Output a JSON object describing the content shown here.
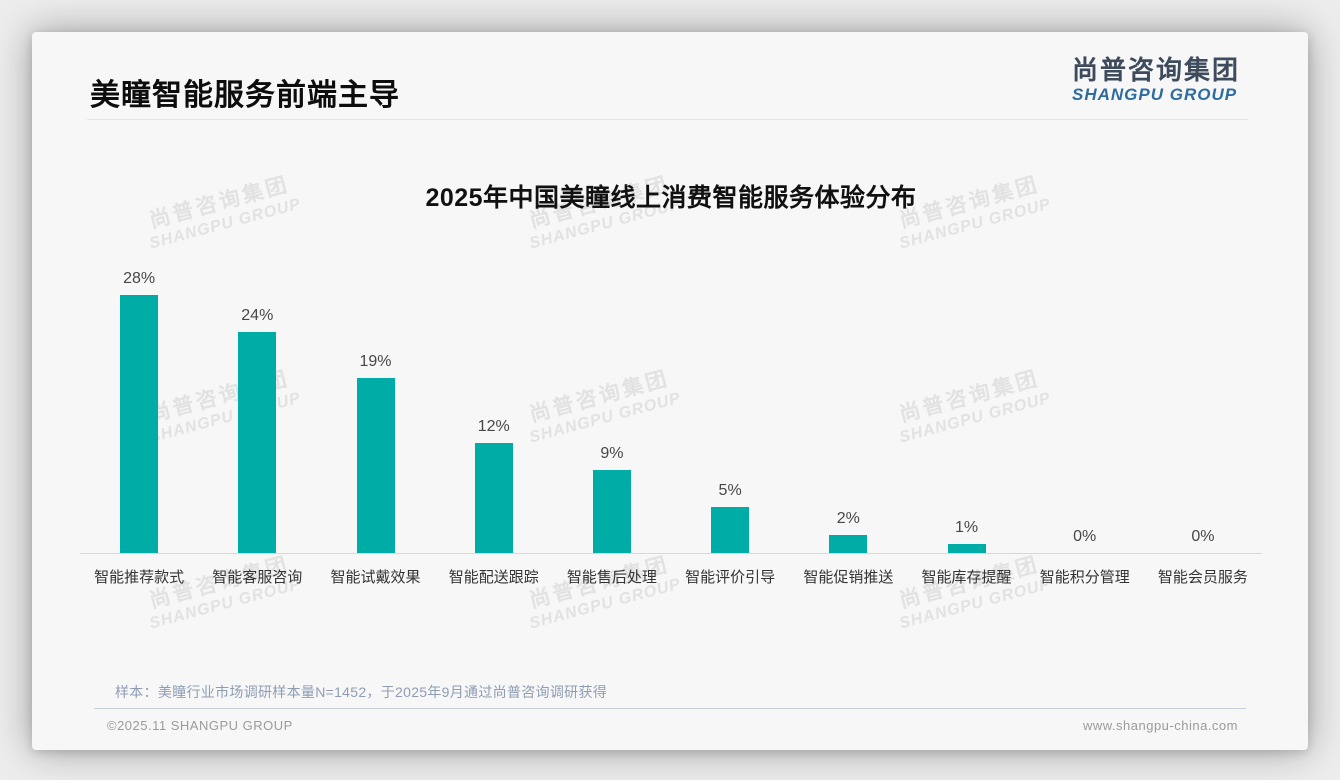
{
  "header": {
    "title": "美瞳智能服务前端主导",
    "logo": {
      "chinese": "尚普咨询集团",
      "english": "SHANGPU GROUP",
      "chinese_color": "#3d4b5c",
      "english_color": "#2e6ba0"
    }
  },
  "chart_data": {
    "type": "bar",
    "title": "2025年中国美瞳线上消费智能服务体验分布",
    "categories": [
      "智能推荐款式",
      "智能客服咨询",
      "智能试戴效果",
      "智能配送跟踪",
      "智能售后处理",
      "智能评价引导",
      "智能促销推送",
      "智能库存提醒",
      "智能积分管理",
      "智能会员服务"
    ],
    "values": [
      28,
      24,
      19,
      12,
      9,
      5,
      2,
      1,
      0,
      0
    ],
    "value_labels": [
      "28%",
      "24%",
      "19%",
      "12%",
      "9%",
      "5%",
      "2%",
      "1%",
      "0%",
      "0%"
    ],
    "unit": "%",
    "bar_color": "#00ada6",
    "axis_color": "#d8d8d8",
    "ylim": [
      0,
      30
    ],
    "grid": false,
    "legend": false,
    "xlabel": "",
    "ylabel": ""
  },
  "watermark": {
    "line1": "尚普咨询集团",
    "line2": "SHANGPU GROUP"
  },
  "footnote": {
    "sample_note": "样本：美瞳行业市场调研样本量N=1452，于2025年9月通过尚普咨询调研获得"
  },
  "footer": {
    "copyright": "©2025.11 SHANGPU GROUP",
    "website": "www.shangpu-china.com"
  }
}
